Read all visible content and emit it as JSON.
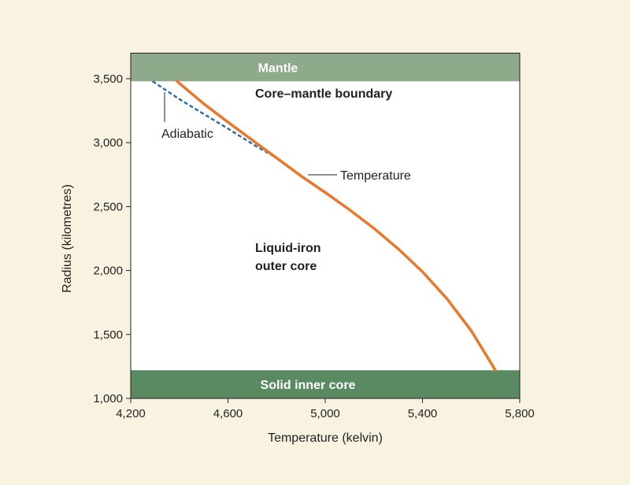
{
  "chart_data": {
    "type": "line",
    "title": "",
    "xlabel": "Temperature (kelvin)",
    "ylabel": "Radius  (kilometres)",
    "xlim": [
      4200,
      5800
    ],
    "ylim": [
      1000,
      3700
    ],
    "x_ticks": [
      4200,
      4600,
      5000,
      5400,
      5800
    ],
    "x_tick_labels": [
      "4,200",
      "4,600",
      "5,000",
      "5,400",
      "5,800"
    ],
    "y_ticks": [
      1000,
      1500,
      2000,
      2500,
      3000,
      3500
    ],
    "y_tick_labels": [
      "1,000",
      "1,500",
      "2,000",
      "2,500",
      "3,000",
      "3,500"
    ],
    "grid": false,
    "bands": [
      {
        "name": "mantle",
        "label": "Mantle",
        "y_from": 3480,
        "y_to": 3700,
        "color": "#8fa98b"
      },
      {
        "name": "inner-core",
        "label": "Solid inner core",
        "y_from": 1000,
        "y_to": 1220,
        "color": "#5a8a62"
      }
    ],
    "series": [
      {
        "name": "Temperature",
        "style": "solid",
        "color": "#e8792c",
        "x": [
          4390,
          4500,
          4600,
          4700,
          4800,
          4900,
          5000,
          5100,
          5200,
          5300,
          5400,
          5500,
          5600,
          5700
        ],
        "y": [
          3480,
          3305,
          3160,
          3020,
          2880,
          2740,
          2610,
          2475,
          2330,
          2170,
          1990,
          1780,
          1530,
          1220
        ]
      },
      {
        "name": "Adiabatic",
        "style": "dashed",
        "color": "#2f6fa8",
        "x": [
          4290,
          4400,
          4500,
          4600,
          4700,
          4800
        ],
        "y": [
          3480,
          3340,
          3225,
          3110,
          2990,
          2880
        ]
      }
    ],
    "annotations": {
      "region_top": "Core–mantle boundary",
      "region_mid_line1": "Liquid-iron",
      "region_mid_line2": "outer core",
      "adiabatic_label": "Adiabatic",
      "temperature_label": "Temperature"
    }
  }
}
